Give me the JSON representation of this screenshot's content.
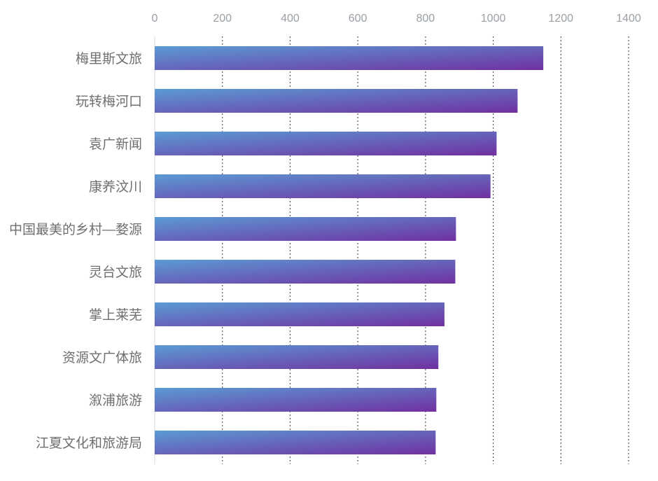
{
  "chart_data": {
    "type": "bar",
    "orientation": "horizontal",
    "categories": [
      "梅里斯文旅",
      "玩转梅河口",
      "袁广新闻",
      "康养汶川",
      "中国最美的乡村—婺源",
      "灵台文旅",
      "掌上莱芜",
      "资源文广体旅",
      "溆浦旅游",
      "江夏文化和旅游局"
    ],
    "values": [
      1148,
      1072,
      1010,
      992,
      890,
      888,
      856,
      838,
      832,
      830
    ],
    "xlim": [
      0,
      1400
    ],
    "x_ticks": [
      0,
      200,
      400,
      600,
      800,
      1000,
      1200,
      1400
    ],
    "x_tick_labels": [
      "0",
      "200",
      "400",
      "600",
      "800",
      "1000",
      "1200",
      "1400"
    ],
    "axis_position": "top",
    "grid": true,
    "grid_style": "dotted",
    "bar_gradient": {
      "start": "#5b9bd5",
      "end": "#7030a0"
    },
    "title": "",
    "xlabel": "",
    "ylabel": ""
  }
}
